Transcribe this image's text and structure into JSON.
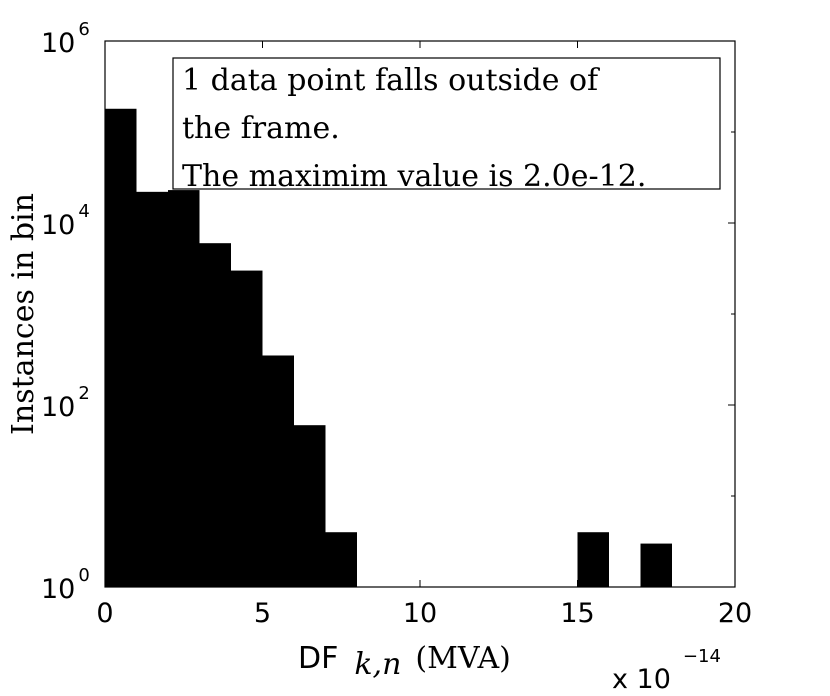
{
  "chart_data": {
    "type": "bar",
    "xlabel_prefix": "DF",
    "xlabel_subscript": "k,n",
    "xlabel_unit": "(MVA)",
    "ylabel": "Instances in bin",
    "x_multiplier_base": "x 10",
    "x_multiplier_exponent": "−14",
    "xlim": [
      0,
      20
    ],
    "ylim": [
      1,
      1000000
    ],
    "yscale": "log",
    "x_ticks": [
      "0",
      "5",
      "10",
      "15",
      "20"
    ],
    "y_tick_base": "10",
    "y_tick_exponents": [
      "0",
      "2",
      "4",
      "6"
    ],
    "grid": false,
    "bin_width": 1,
    "bins": [
      {
        "x0": 0,
        "count": 180000
      },
      {
        "x0": 1,
        "count": 22000
      },
      {
        "x0": 2,
        "count": 23000
      },
      {
        "x0": 3,
        "count": 6000
      },
      {
        "x0": 4,
        "count": 3000
      },
      {
        "x0": 5,
        "count": 350
      },
      {
        "x0": 6,
        "count": 60
      },
      {
        "x0": 7,
        "count": 4
      },
      {
        "x0": 15,
        "count": 4
      },
      {
        "x0": 17,
        "count": 3
      }
    ],
    "annotation_lines": [
      "1 data point falls outside of",
      "the frame.",
      "The maximim value is 2.0e-12."
    ],
    "bar_color": "#000000"
  }
}
